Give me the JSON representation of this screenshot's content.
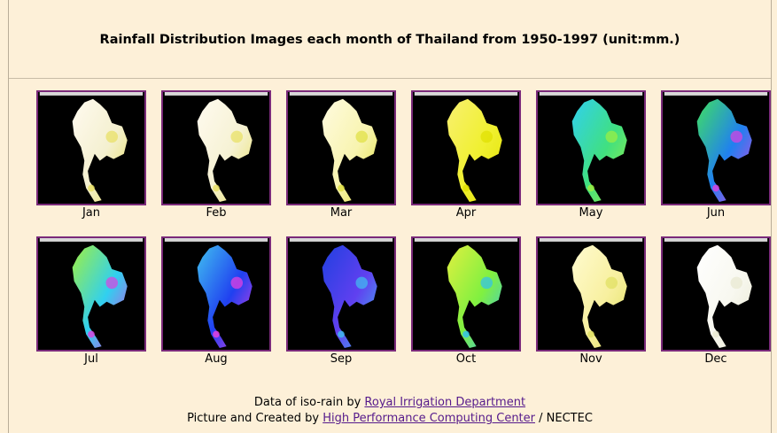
{
  "header": {
    "title": "Rainfall Distribution Images each month of Thailand from 1950-1997 (unit:mm.)"
  },
  "months": [
    "Jan",
    "Feb",
    "Mar",
    "Apr",
    "May",
    "Jun",
    "Jul",
    "Aug",
    "Sep",
    "Oct",
    "Nov",
    "Dec"
  ],
  "footer": {
    "line1": {
      "text": "Data of iso-rain by",
      "link": "Royal Irrigation Department"
    },
    "line2": {
      "text": "Picture and Created by",
      "link": "High Performance Computing Center",
      "suffix": "/ NECTEC"
    }
  }
}
